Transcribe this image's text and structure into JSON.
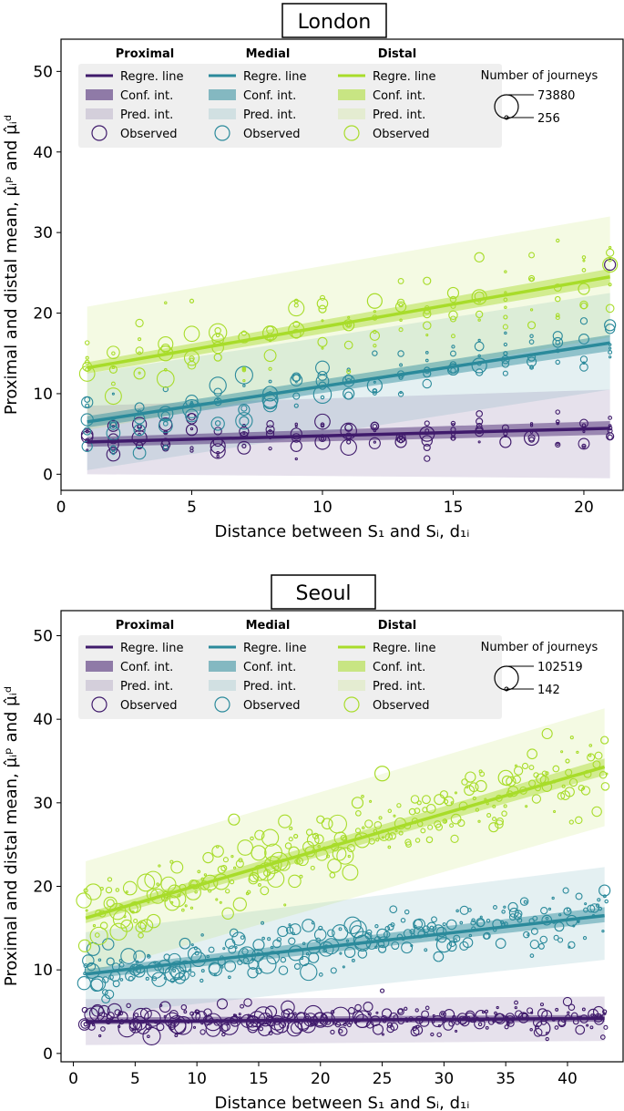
{
  "colors": {
    "proximal": "#3f1a6b",
    "medial": "#2b8a9b",
    "distal": "#a8dc2a",
    "proximal_band": "#7f6aa3",
    "medial_band": "#7fb8c0",
    "distal_band": "#cfe88a"
  },
  "legend": {
    "groups": [
      "Proximal",
      "Medial",
      "Distal"
    ],
    "entries": [
      "Regre. line",
      "Conf. int.",
      "Pred. int.",
      "Observed"
    ],
    "size_title": "Number of journeys"
  },
  "chart_data": [
    {
      "type": "scatter",
      "title": "London",
      "xlabel": "Distance between S₁ and Sᵢ, d₁ᵢ",
      "ylabel": "Proximal and distal mean, μ̂ᵢᵖ and μ̂ᵢᵈ",
      "xlim": [
        0,
        21.5
      ],
      "ylim": [
        -2,
        54
      ],
      "xticks": [
        0,
        5,
        10,
        15,
        20
      ],
      "yticks": [
        0,
        10,
        20,
        30,
        40,
        50
      ],
      "size_legend": [
        "73880",
        "256"
      ],
      "series": [
        {
          "name": "Proximal",
          "key": "proximal",
          "regression": [
            [
              1,
              4.0
            ],
            [
              21,
              5.7
            ]
          ],
          "conf_int": [
            [
              1,
              3.4,
              4.6
            ],
            [
              21,
              4.9,
              6.6
            ]
          ],
          "pred_int": [
            [
              1,
              0,
              8.5
            ],
            [
              21,
              -0.5,
              10.5
            ]
          ],
          "observed_sample": [
            [
              1,
              4.2
            ],
            [
              2,
              3.0
            ],
            [
              2,
              6.0
            ],
            [
              3,
              4.5
            ],
            [
              3,
              6.0
            ],
            [
              4,
              4.0
            ],
            [
              5,
              5.5
            ],
            [
              6,
              3.5
            ],
            [
              7,
              3.5
            ],
            [
              8,
              5.0
            ],
            [
              9,
              3.5
            ],
            [
              10,
              4.0
            ],
            [
              11,
              4.0
            ],
            [
              12,
              6.0
            ],
            [
              13,
              4.0
            ],
            [
              14,
              5.0
            ],
            [
              15,
              5.0
            ],
            [
              16,
              5.5
            ],
            [
              17,
              4.0
            ],
            [
              18,
              4.5
            ],
            [
              20,
              3.5
            ],
            [
              21,
              4.7
            ],
            [
              21,
              26.0
            ]
          ]
        },
        {
          "name": "Medial",
          "key": "medial",
          "regression": [
            [
              1,
              6.5
            ],
            [
              21,
              16.3
            ]
          ],
          "conf_int": [
            [
              1,
              5.8,
              7.2
            ],
            [
              21,
              15.3,
              17.3
            ]
          ],
          "pred_int": [
            [
              1,
              0.5,
              12.5
            ],
            [
              21,
              10.5,
              22.5
            ]
          ],
          "observed_sample": [
            [
              1,
              8.5
            ],
            [
              2,
              6.0
            ],
            [
              3,
              5.5
            ],
            [
              4,
              7.5
            ],
            [
              5,
              8.5
            ],
            [
              6,
              9.0
            ],
            [
              7,
              8.0
            ],
            [
              8,
              10.0
            ],
            [
              9,
              8.5
            ],
            [
              10,
              11.0
            ],
            [
              11,
              10.0
            ],
            [
              12,
              11.0
            ],
            [
              13,
              12.0
            ],
            [
              14,
              12.5
            ],
            [
              15,
              13.0
            ],
            [
              16,
              13.5
            ],
            [
              17,
              15.0
            ],
            [
              18,
              14.5
            ],
            [
              21,
              18.5
            ]
          ]
        },
        {
          "name": "Distal",
          "key": "distal",
          "regression": [
            [
              1,
              13.2
            ],
            [
              21,
              24.5
            ]
          ],
          "conf_int": [
            [
              1,
              12.5,
              13.9
            ],
            [
              21,
              23.5,
              25.5
            ]
          ],
          "pred_int": [
            [
              1,
              5.5,
              20.8
            ],
            [
              21,
              17.0,
              32.0
            ]
          ],
          "observed_sample": [
            [
              1,
              13.0
            ],
            [
              2,
              13.0
            ],
            [
              3,
              12.5
            ],
            [
              4,
              15.0
            ],
            [
              5,
              21.5
            ],
            [
              6,
              14.5
            ],
            [
              7,
              17.0
            ],
            [
              8,
              17.5
            ],
            [
              9,
              21.5
            ],
            [
              10,
              20.5
            ],
            [
              11,
              18.5
            ],
            [
              12,
              21.5
            ],
            [
              13,
              21.0
            ],
            [
              14,
              24.0
            ],
            [
              15,
              22.5
            ],
            [
              16,
              22.0
            ],
            [
              17,
              19.5
            ],
            [
              18,
              18.5
            ],
            [
              20,
              23.0
            ],
            [
              21,
              26.0
            ]
          ]
        }
      ]
    },
    {
      "type": "scatter",
      "title": "Seoul",
      "xlabel": "Distance between S₁ and Sᵢ, d₁ᵢ",
      "ylabel": "Proximal and distal mean, μ̂ᵢᵖ and μ̂ᵢᵈ",
      "xlim": [
        -1,
        44.5
      ],
      "ylim": [
        -1,
        53
      ],
      "xticks": [
        0,
        5,
        10,
        15,
        20,
        25,
        30,
        35,
        40
      ],
      "yticks": [
        0,
        10,
        20,
        30,
        40,
        50
      ],
      "size_legend": [
        "102519",
        "142"
      ],
      "series": [
        {
          "name": "Proximal",
          "key": "proximal",
          "regression": [
            [
              1,
              3.8
            ],
            [
              43,
              4.2
            ]
          ],
          "conf_int": [
            [
              1,
              3.5,
              4.3
            ],
            [
              43,
              3.8,
              4.6
            ]
          ],
          "pred_int": [
            [
              1,
              1.0,
              6.5
            ],
            [
              43,
              1.5,
              6.8
            ]
          ],
          "observed_sample": [
            [
              1,
              3.5
            ],
            [
              3,
              4.5
            ],
            [
              5,
              3.5
            ],
            [
              8,
              4.0
            ],
            [
              10,
              5.0
            ],
            [
              13,
              4.0
            ],
            [
              16,
              5.0
            ],
            [
              20,
              4.0
            ],
            [
              25,
              7.5
            ],
            [
              28,
              4.0
            ],
            [
              33,
              4.5
            ],
            [
              38,
              3.0
            ],
            [
              43,
              5.0
            ]
          ]
        },
        {
          "name": "Medial",
          "key": "medial",
          "regression": [
            [
              1,
              9.5
            ],
            [
              43,
              16.5
            ]
          ],
          "conf_int": [
            [
              1,
              8.9,
              10.1
            ],
            [
              43,
              15.7,
              17.5
            ]
          ],
          "pred_int": [
            [
              1,
              4.5,
              14.5
            ],
            [
              43,
              11.2,
              22.3
            ]
          ],
          "observed_sample": [
            [
              1,
              10.5
            ],
            [
              3,
              11.0
            ],
            [
              5,
              10.0
            ],
            [
              8,
              9.5
            ],
            [
              10,
              12.0
            ],
            [
              12,
              11.0
            ],
            [
              15,
              13.0
            ],
            [
              18,
              12.0
            ],
            [
              20,
              15.0
            ],
            [
              25,
              12.5
            ],
            [
              28,
              14.5
            ],
            [
              30,
              13.0
            ],
            [
              35,
              15.5
            ],
            [
              40,
              17.0
            ],
            [
              43,
              19.5
            ]
          ]
        },
        {
          "name": "Distal",
          "key": "distal",
          "regression": [
            [
              1,
              16.2
            ],
            [
              43,
              34.3
            ]
          ],
          "conf_int": [
            [
              1,
              15.6,
              16.8
            ],
            [
              43,
              33.3,
              35.3
            ]
          ],
          "pred_int": [
            [
              1,
              9.5,
              23.0
            ],
            [
              43,
              27.2,
              41.3
            ]
          ],
          "observed_sample": [
            [
              1,
              19.5
            ],
            [
              3,
              18.0
            ],
            [
              5,
              17.5
            ],
            [
              8,
              18.0
            ],
            [
              10,
              20.0
            ],
            [
              12,
              22.0
            ],
            [
              13,
              28.0
            ],
            [
              15,
              24.0
            ],
            [
              18,
              26.0
            ],
            [
              20,
              28.0
            ],
            [
              23,
              30.0
            ],
            [
              25,
              33.5
            ],
            [
              28,
              30.0
            ],
            [
              30,
              31.0
            ],
            [
              33,
              32.0
            ],
            [
              35,
              33.0
            ],
            [
              40,
              35.0
            ],
            [
              43,
              37.5
            ]
          ]
        }
      ]
    }
  ]
}
